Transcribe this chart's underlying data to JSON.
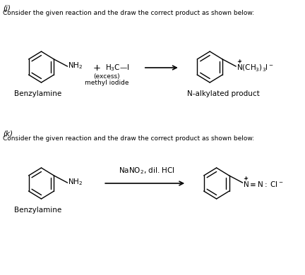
{
  "bg_color": "#ffffff",
  "text_color": "#000000",
  "section_j_label": "(j)",
  "section_k_label": "(k)",
  "description": "Consider the given reaction and the draw the correct product as shown below:",
  "j_reactant1_label": "Benzylamine",
  "j_reagent_label": "(excess)\nmethyl iodide",
  "j_product_label": "N-alkylated product",
  "j_reagent_formula": "H₃C—I",
  "j_plus": "+",
  "j_nh2": "NH₂",
  "j_product_formula": "ᴺ(CH₃)₃I⁻",
  "k_reactant_label": "Benzylamine",
  "k_nh2": "NH₂",
  "k_reagent": "NaNO₂, dil. HCl",
  "k_product_formula": "ᴺ≡N : Cl⁻"
}
